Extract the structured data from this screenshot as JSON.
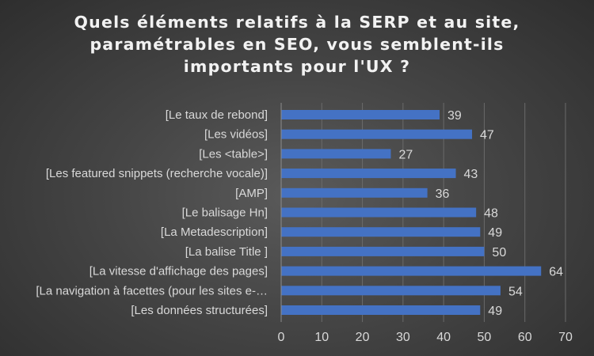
{
  "chart_data": {
    "type": "bar",
    "orientation": "horizontal",
    "title_lines": [
      "Quels éléments relatifs à la SERP et au site,",
      "paramétrables en SEO, vous semblent-ils",
      "importants pour l'UX ?"
    ],
    "categories": [
      "[Le taux de rebond]",
      "[Les vidéos]",
      "[Les <table>]",
      "[Les featured snippets (recherche vocale)]",
      "[AMP]",
      "[Le balisage Hn]",
      "[La Metadescription]",
      "[La balise Title ]",
      "[La vitesse d'affichage des pages]",
      "[La navigation à facettes (pour les sites e-…",
      "[Les données structurées]"
    ],
    "values": [
      39,
      47,
      27,
      43,
      36,
      48,
      49,
      50,
      64,
      54,
      49
    ],
    "xlim": [
      0,
      70
    ],
    "xticks": [
      0,
      10,
      20,
      30,
      40,
      50,
      60,
      70
    ],
    "grid": true,
    "legend": "none",
    "bar_color": "#4472c4",
    "text_color": "#d9d9d9",
    "grid_color": "#6a6a6a"
  }
}
